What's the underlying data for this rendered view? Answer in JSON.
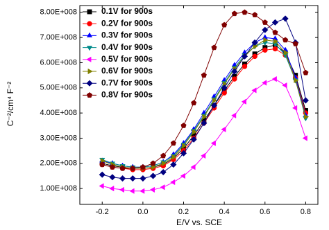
{
  "chart_data": {
    "type": "line",
    "x_label": "E/V vs. SCE",
    "y_label": "C⁻²/cm⁴ F⁻²",
    "x": [
      -0.2,
      -0.15,
      -0.1,
      -0.05,
      0,
      0.05,
      0.1,
      0.15,
      0.2,
      0.25,
      0.3,
      0.35,
      0.4,
      0.45,
      0.5,
      0.55,
      0.6,
      0.65,
      0.7,
      0.75,
      0.8
    ],
    "xlim": [
      -0.31,
      0.86
    ],
    "xticks": [
      -0.2,
      {
        "value": 0,
        "label": "0.0"
      },
      0.2,
      0.4,
      0.6,
      0.8
    ],
    "ylim": [
      37000000.0,
      827000000.0
    ],
    "yticks": [
      {
        "value": 100000000.0,
        "label": "1.00E+008"
      },
      {
        "value": 200000000.0,
        "label": "2.00E+008"
      },
      {
        "value": 300000000.0,
        "label": "3.00E+008"
      },
      {
        "value": 400000000.0,
        "label": "4.00E+008"
      },
      {
        "value": 500000000.0,
        "label": "5.00E+008"
      },
      {
        "value": 600000000.0,
        "label": "6.00E+008"
      },
      {
        "value": 700000000.0,
        "label": "7.00E+008"
      },
      {
        "value": 800000000.0,
        "label": "8.00E+008"
      }
    ],
    "legend": "upper-left",
    "series": [
      {
        "name": "0.1V for 900s",
        "color": "#000000",
        "marker": "square",
        "values": [
          200000000.0,
          190000000.0,
          185000000.0,
          180000000.0,
          180000000.0,
          185000000.0,
          195000000.0,
          220000000.0,
          260000000.0,
          310000000.0,
          370000000.0,
          430000000.0,
          490000000.0,
          545000000.0,
          595000000.0,
          635000000.0,
          660000000.0,
          670000000.0,
          640000000.0,
          550000000.0,
          410000000.0
        ]
      },
      {
        "name": "0.2V for 900s",
        "color": "#ff0000",
        "marker": "circle",
        "values": [
          195000000.0,
          185000000.0,
          180000000.0,
          175000000.0,
          175000000.0,
          180000000.0,
          190000000.0,
          215000000.0,
          250000000.0,
          300000000.0,
          360000000.0,
          420000000.0,
          480000000.0,
          535000000.0,
          585000000.0,
          625000000.0,
          650000000.0,
          655000000.0,
          630000000.0,
          540000000.0,
          400000000.0
        ]
      },
      {
        "name": "0.3V for 900s",
        "color": "#0000ff",
        "marker": "triangle-up",
        "values": [
          210000000.0,
          200000000.0,
          190000000.0,
          185000000.0,
          185000000.0,
          190000000.0,
          205000000.0,
          235000000.0,
          280000000.0,
          335000000.0,
          400000000.0,
          465000000.0,
          530000000.0,
          590000000.0,
          640000000.0,
          680000000.0,
          700000000.0,
          695000000.0,
          650000000.0,
          540000000.0,
          390000000.0
        ]
      },
      {
        "name": "0.4V for 900s",
        "color": "#008b8b",
        "marker": "triangle-down",
        "values": [
          215000000.0,
          200000000.0,
          190000000.0,
          185000000.0,
          185000000.0,
          190000000.0,
          205000000.0,
          230000000.0,
          275000000.0,
          330000000.0,
          390000000.0,
          455000000.0,
          520000000.0,
          580000000.0,
          630000000.0,
          665000000.0,
          680000000.0,
          675000000.0,
          630000000.0,
          530000000.0,
          380000000.0
        ]
      },
      {
        "name": "0.5V for 900s",
        "color": "#ff00ff",
        "marker": "triangle-left",
        "values": [
          110000000.0,
          100000000.0,
          95000000.0,
          90000000.0,
          90000000.0,
          95000000.0,
          105000000.0,
          125000000.0,
          150000000.0,
          185000000.0,
          230000000.0,
          280000000.0,
          335000000.0,
          390000000.0,
          445000000.0,
          490000000.0,
          520000000.0,
          535000000.0,
          510000000.0,
          420000000.0,
          300000000.0
        ]
      },
      {
        "name": "0.6V for 900s",
        "color": "#808000",
        "marker": "triangle-right",
        "values": [
          210000000.0,
          195000000.0,
          185000000.0,
          180000000.0,
          180000000.0,
          185000000.0,
          200000000.0,
          225000000.0,
          270000000.0,
          325000000.0,
          385000000.0,
          450000000.0,
          515000000.0,
          575000000.0,
          625000000.0,
          665000000.0,
          690000000.0,
          685000000.0,
          640000000.0,
          530000000.0,
          385000000.0
        ]
      },
      {
        "name": "0.7V for 900s",
        "color": "#000080",
        "marker": "diamond",
        "values": [
          155000000.0,
          145000000.0,
          140000000.0,
          140000000.0,
          140000000.0,
          150000000.0,
          165000000.0,
          195000000.0,
          240000000.0,
          295000000.0,
          360000000.0,
          430000000.0,
          500000000.0,
          565000000.0,
          625000000.0,
          680000000.0,
          730000000.0,
          760000000.0,
          775000000.0,
          680000000.0,
          450000000.0
        ]
      },
      {
        "name": "0.8V for 900s",
        "color": "#800000",
        "marker": "pentagon",
        "values": [
          195000000.0,
          185000000.0,
          180000000.0,
          180000000.0,
          185000000.0,
          200000000.0,
          230000000.0,
          280000000.0,
          350000000.0,
          440000000.0,
          550000000.0,
          660000000.0,
          750000000.0,
          795000000.0,
          800000000.0,
          790000000.0,
          760000000.0,
          720000000.0,
          690000000.0,
          675000000.0,
          560000000.0
        ]
      }
    ]
  }
}
